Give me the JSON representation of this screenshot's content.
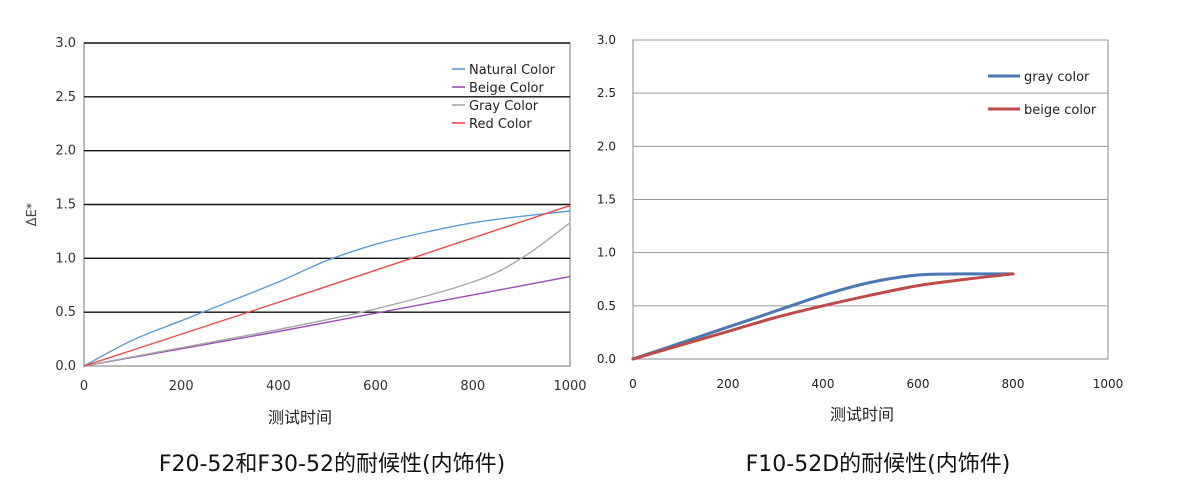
{
  "chart_data": [
    {
      "type": "line",
      "title": "",
      "caption": "F20-52和F30-52的耐候性(内饰件)",
      "xlabel": "测试时间",
      "ylabel": "ΔE*",
      "xlim": [
        0,
        1000
      ],
      "ylim": [
        0,
        3.0
      ],
      "xticks": [
        0,
        200,
        400,
        600,
        800,
        1000
      ],
      "yticks": [
        "0.0",
        "0.5",
        "1.0",
        "1.5",
        "2.0",
        "2.5",
        "3.0"
      ],
      "grid": "horizontal",
      "legend_position": "top-right",
      "series": [
        {
          "name": "Natural Color",
          "color": "#5b9bd5",
          "x": [
            0,
            100,
            200,
            300,
            400,
            500,
            600,
            700,
            800,
            900,
            1000
          ],
          "y": [
            0,
            0.24,
            0.42,
            0.6,
            0.78,
            0.98,
            1.13,
            1.24,
            1.33,
            1.39,
            1.44
          ]
        },
        {
          "name": "Beige Color",
          "color": "#9b4fb5",
          "x": [
            0,
            200,
            400,
            600,
            800,
            1000
          ],
          "y": [
            0,
            0.16,
            0.32,
            0.49,
            0.66,
            0.83
          ]
        },
        {
          "name": "Gray Color",
          "color": "#a8a8a8",
          "x": [
            0,
            200,
            400,
            600,
            800,
            900,
            1000
          ],
          "y": [
            0,
            0.17,
            0.34,
            0.53,
            0.78,
            1.0,
            1.33
          ]
        },
        {
          "name": "Red Color",
          "color": "#ee4a4a",
          "x": [
            0,
            500,
            1000
          ],
          "y": [
            0,
            0.74,
            1.49
          ]
        }
      ]
    },
    {
      "type": "line",
      "title": "",
      "caption": "F10-52D的耐候性(内饰件)",
      "xlabel": "测试时间",
      "ylabel": "",
      "xlim": [
        0,
        1000
      ],
      "ylim": [
        0,
        3.0
      ],
      "xticks": [
        0,
        200,
        400,
        600,
        800,
        1000
      ],
      "yticks": [
        "0.0",
        "0.5",
        "1.0",
        "1.5",
        "2.0",
        "2.5",
        "3.0"
      ],
      "grid": "horizontal",
      "legend_position": "top-right",
      "series": [
        {
          "name": "gray color",
          "color": "#4a78b5",
          "x": [
            0,
            100,
            200,
            300,
            400,
            500,
            600,
            700,
            800
          ],
          "y": [
            0,
            0.15,
            0.3,
            0.45,
            0.6,
            0.72,
            0.79,
            0.8,
            0.8
          ]
        },
        {
          "name": "beige color",
          "color": "#be4b48",
          "x": [
            0,
            100,
            200,
            300,
            400,
            500,
            600,
            700,
            800
          ],
          "y": [
            0,
            0.13,
            0.26,
            0.39,
            0.5,
            0.6,
            0.69,
            0.75,
            0.8
          ]
        }
      ]
    }
  ]
}
